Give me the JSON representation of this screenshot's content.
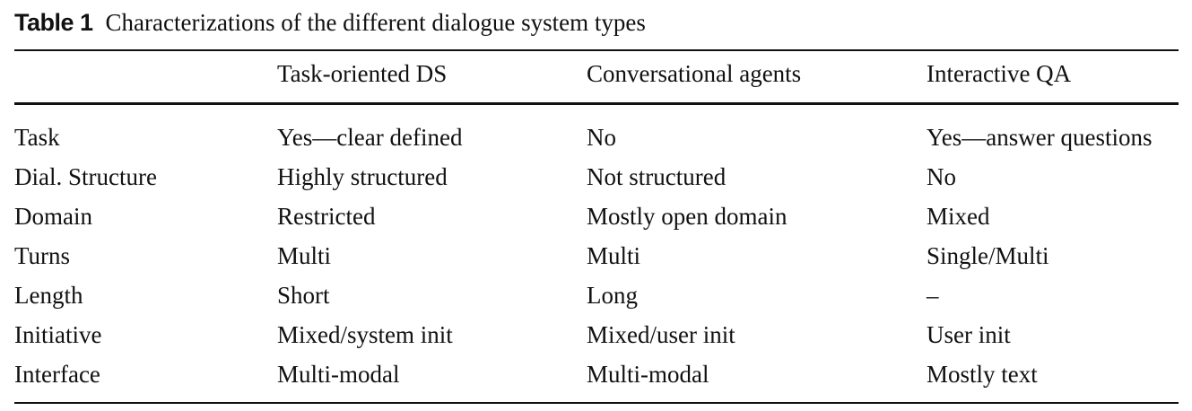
{
  "caption": {
    "label": "Table 1",
    "text": "Characterizations of the different dialogue system types"
  },
  "table": {
    "headers": [
      "",
      "Task-oriented DS",
      "Conversational agents",
      "Interactive QA"
    ],
    "rows": [
      [
        "Task",
        "Yes—clear defined",
        "No",
        "Yes—answer questions"
      ],
      [
        "Dial. Structure",
        "Highly structured",
        "Not structured",
        "No"
      ],
      [
        "Domain",
        "Restricted",
        "Mostly open domain",
        "Mixed"
      ],
      [
        "Turns",
        "Multi",
        "Multi",
        "Single/Multi"
      ],
      [
        "Length",
        "Short",
        "Long",
        "–"
      ],
      [
        "Initiative",
        "Mixed/system init",
        "Mixed/user init",
        "User init"
      ],
      [
        "Interface",
        "Multi-modal",
        "Multi-modal",
        "Mostly text"
      ]
    ]
  }
}
